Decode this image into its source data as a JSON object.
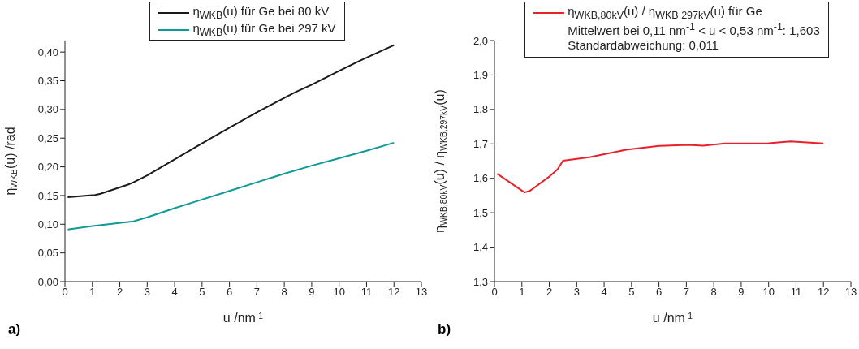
{
  "chart_data": [
    {
      "type": "line",
      "xlabel": "u /nm$^{-1}$",
      "ylabel": "η$_{WKB}$(u) /rad",
      "xlim": [
        0,
        13
      ],
      "ylim": [
        0,
        0.42
      ],
      "xticks": [
        0,
        1,
        2,
        3,
        4,
        5,
        6,
        7,
        8,
        9,
        10,
        11,
        12,
        13
      ],
      "yticks": [
        {
          "value": 0,
          "label": "0,00"
        },
        {
          "value": 0.05,
          "label": "0,05"
        },
        {
          "value": 0.1,
          "label": "0,10"
        },
        {
          "value": 0.15,
          "label": "0,15"
        },
        {
          "value": 0.2,
          "label": "0,20"
        },
        {
          "value": 0.25,
          "label": "0,25"
        },
        {
          "value": 0.3,
          "label": "0,30"
        },
        {
          "value": 0.35,
          "label": "0,35"
        },
        {
          "value": 0.4,
          "label": "0,40"
        }
      ],
      "legend": "top",
      "line_style": "solid",
      "annotations": [
        "a)"
      ],
      "series": [
        {
          "name": "η$_{WKB}$(u) für Ge bei 80 kV",
          "color": "#1a1a1a",
          "x": [
            0.1,
            1.1,
            1.3,
            2.3,
            2.5,
            3,
            4,
            5,
            6,
            7,
            8,
            8.4,
            9,
            10,
            10.8,
            12
          ],
          "values": [
            0.147,
            0.151,
            0.153,
            0.169,
            0.173,
            0.185,
            0.213,
            0.241,
            0.268,
            0.295,
            0.32,
            0.33,
            0.343,
            0.367,
            0.386,
            0.412
          ]
        },
        {
          "name": "η$_{WKB}$(u) für Ge bei 297 kV",
          "color": "#109a96",
          "x": [
            0.1,
            1,
            2.5,
            3,
            4,
            5,
            6,
            7,
            7.6,
            8,
            9,
            10,
            11,
            12
          ],
          "values": [
            0.091,
            0.097,
            0.105,
            0.112,
            0.128,
            0.143,
            0.158,
            0.173,
            0.182,
            0.188,
            0.202,
            0.215,
            0.228,
            0.242
          ]
        }
      ]
    },
    {
      "type": "line",
      "xlabel": "u /nm$^{-1}$",
      "ylabel": "η$_{WKB,80kV}$(u) / η$_{WKB,297kV}$(u)",
      "xlim": [
        0,
        13
      ],
      "ylim": [
        1.3,
        2.0
      ],
      "xticks": [
        0,
        1,
        2,
        3,
        4,
        5,
        6,
        7,
        8,
        9,
        10,
        11,
        12,
        13
      ],
      "yticks": [
        {
          "value": 1.3,
          "label": "1,3"
        },
        {
          "value": 1.4,
          "label": "1,4"
        },
        {
          "value": 1.5,
          "label": "1,5"
        },
        {
          "value": 1.6,
          "label": "1,6"
        },
        {
          "value": 1.7,
          "label": "1,7"
        },
        {
          "value": 1.8,
          "label": "1,8"
        },
        {
          "value": 1.9,
          "label": "1,9"
        },
        {
          "value": 2.0,
          "label": "2,0"
        }
      ],
      "legend": "top",
      "line_style": "solid",
      "annotations": [
        "b)",
        "Mittelwert bei 0,11 nm$^{-1}$ < u < 0,53 nm$^{-1}$:  1,603",
        "Standardabweichung:  0,011"
      ],
      "series": [
        {
          "name": "η$_{WKB,80kV}$(u) / η$_{WKB,297kV}$(u) für Ge",
          "color": "#e8202a",
          "x": [
            0.1,
            1.1,
            1.3,
            2.0,
            2.3,
            2.5,
            3.5,
            4,
            4.8,
            6,
            7.1,
            7.6,
            8.4,
            10,
            10.8,
            12
          ],
          "values": [
            1.613,
            1.559,
            1.564,
            1.605,
            1.626,
            1.651,
            1.662,
            1.67,
            1.683,
            1.694,
            1.697,
            1.695,
            1.701,
            1.702,
            1.707,
            1.701
          ]
        }
      ]
    }
  ]
}
